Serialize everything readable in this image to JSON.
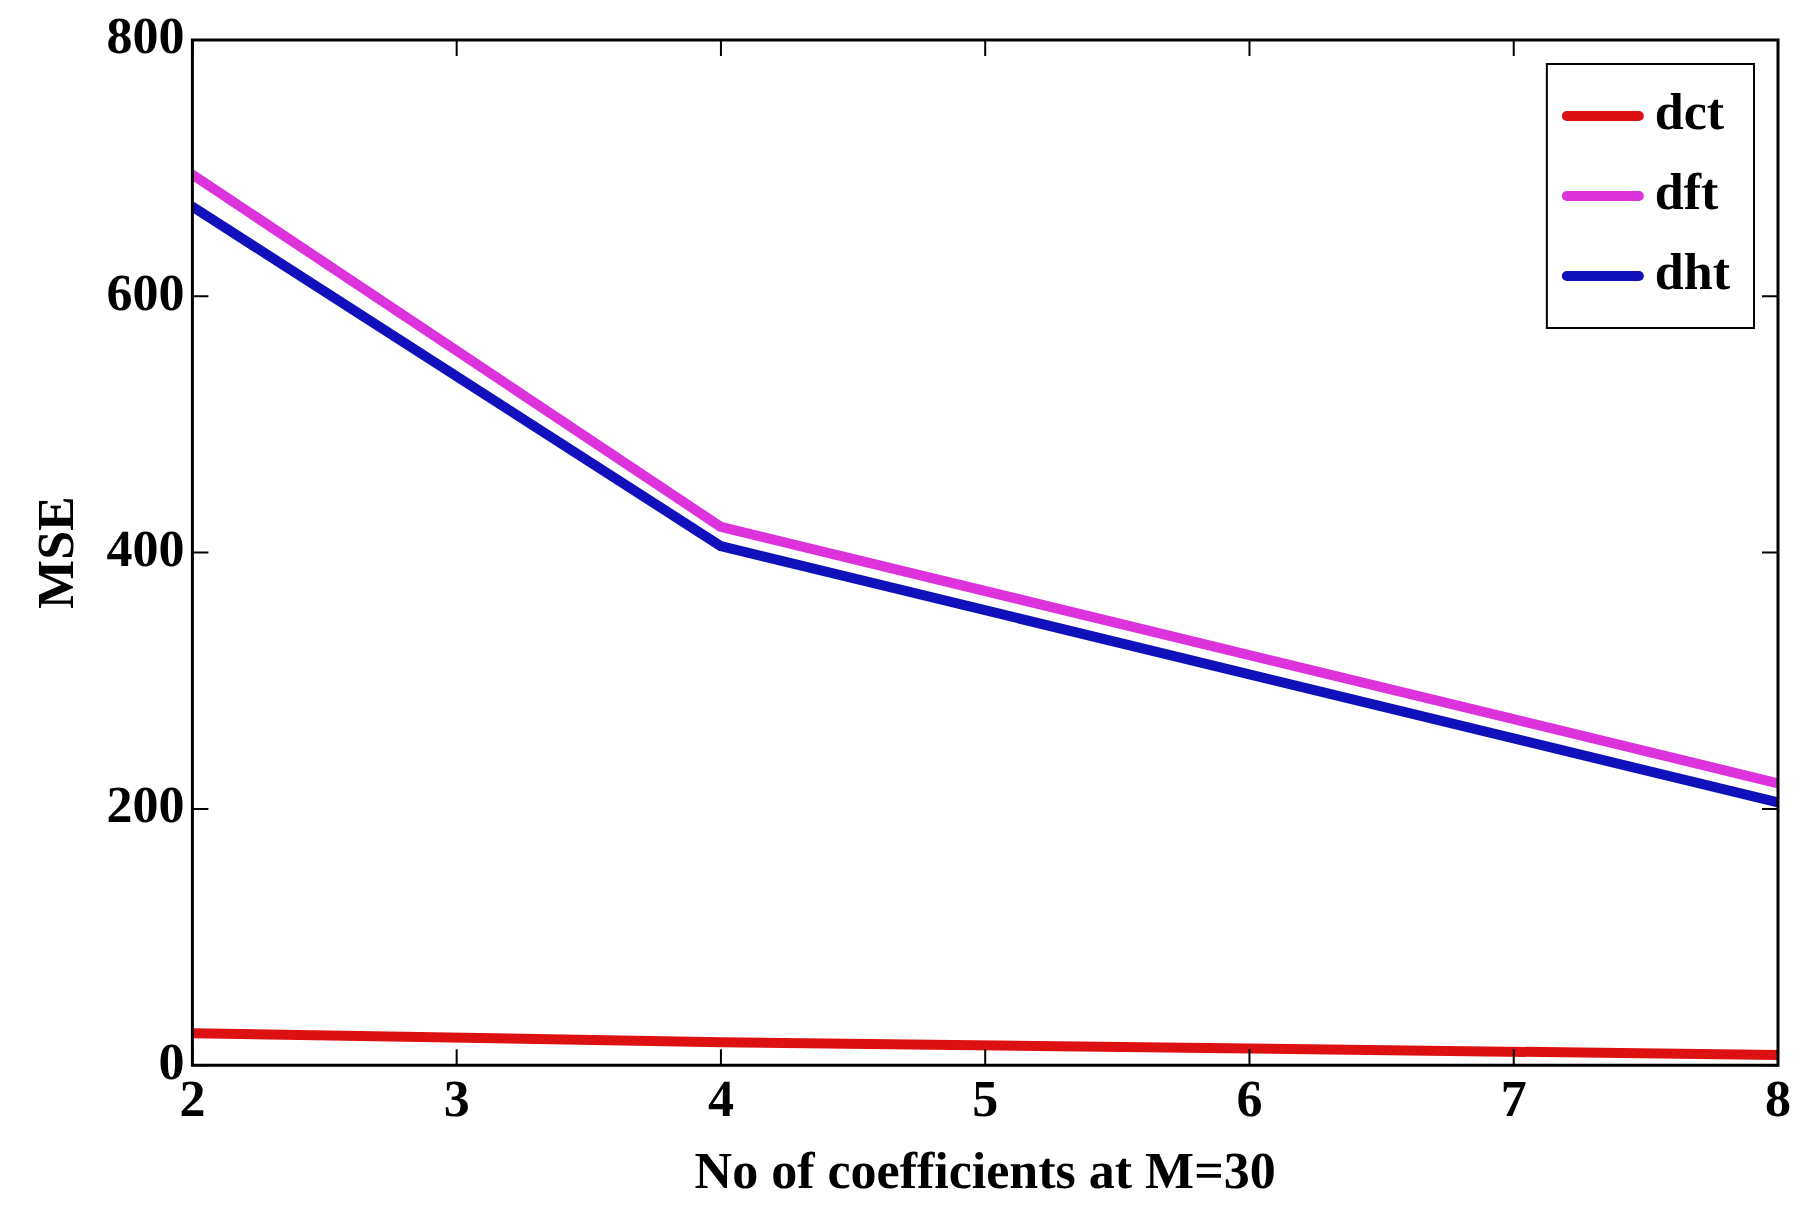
{
  "chart_data": {
    "type": "line",
    "xlabel": "No of coefficients at M=30",
    "ylabel": "MSE",
    "xlim": [
      2,
      8
    ],
    "xticks": [
      2,
      3,
      4,
      5,
      6,
      7,
      8
    ],
    "ylim": [
      0,
      800
    ],
    "yticks": [
      0,
      200,
      400,
      600,
      800
    ],
    "grid": false,
    "legend": "top right",
    "marker": "none",
    "line_style": "solid",
    "series": [
      {
        "name": "dct",
        "color": "#dd1111",
        "x": [
          2,
          4,
          6,
          8
        ],
        "values": [
          25,
          18,
          13,
          8
        ]
      },
      {
        "name": "dft",
        "color": "#dd33dd",
        "x": [
          2,
          4,
          8
        ],
        "values": [
          695,
          420,
          220
        ]
      },
      {
        "name": "dht",
        "color": "#1111bb",
        "x": [
          2,
          4,
          8
        ],
        "values": [
          670,
          405,
          205
        ]
      }
    ]
  }
}
